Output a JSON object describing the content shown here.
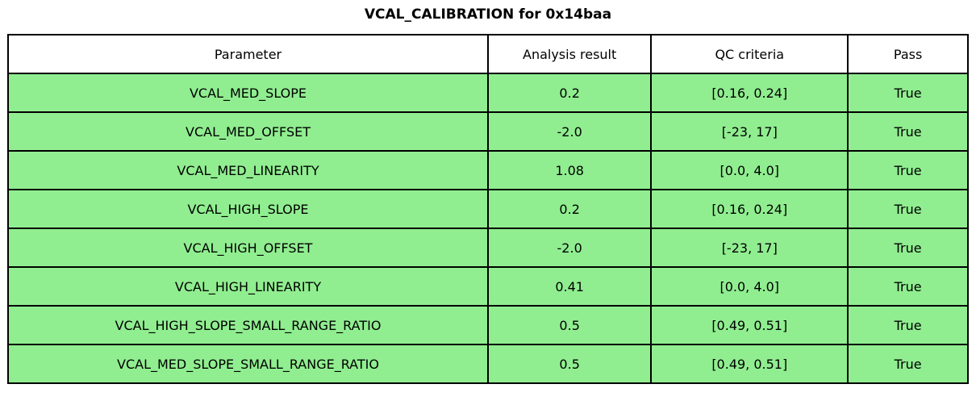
{
  "title": "VCAL_CALIBRATION for 0x14baa",
  "colors": {
    "row_fill": "#90EE90",
    "header_fill": "#FFFFFF",
    "border": "#000000",
    "text": "#000000"
  },
  "chart_data": {
    "type": "table",
    "title": "VCAL_CALIBRATION for 0x14baa",
    "columns": [
      "Parameter",
      "Analysis result",
      "QC criteria",
      "Pass"
    ],
    "rows": [
      [
        "VCAL_MED_SLOPE",
        "0.2",
        "[0.16, 0.24]",
        "True"
      ],
      [
        "VCAL_MED_OFFSET",
        "-2.0",
        "[-23, 17]",
        "True"
      ],
      [
        "VCAL_MED_LINEARITY",
        "1.08",
        "[0.0, 4.0]",
        "True"
      ],
      [
        "VCAL_HIGH_SLOPE",
        "0.2",
        "[0.16, 0.24]",
        "True"
      ],
      [
        "VCAL_HIGH_OFFSET",
        "-2.0",
        "[-23, 17]",
        "True"
      ],
      [
        "VCAL_HIGH_LINEARITY",
        "0.41",
        "[0.0, 4.0]",
        "True"
      ],
      [
        "VCAL_HIGH_SLOPE_SMALL_RANGE_RATIO",
        "0.5",
        "[0.49, 0.51]",
        "True"
      ],
      [
        "VCAL_MED_SLOPE_SMALL_RANGE_RATIO",
        "0.5",
        "[0.49, 0.51]",
        "True"
      ]
    ],
    "layout": {
      "grid": true,
      "header_background": "#FFFFFF",
      "row_background": "#90EE90",
      "border_color": "#000000",
      "cell_alignment": "center"
    }
  }
}
